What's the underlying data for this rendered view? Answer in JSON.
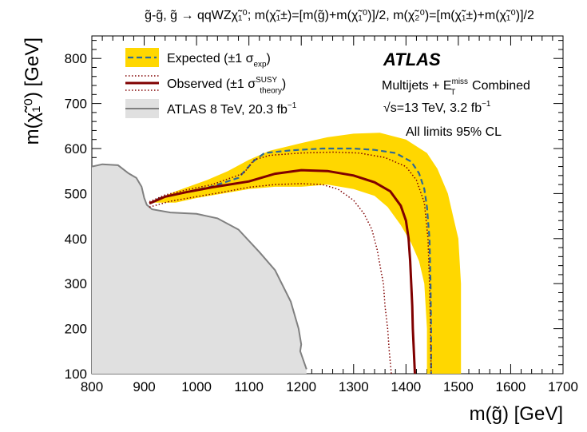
{
  "chart_data": {
    "type": "line",
    "title": "g̃-g̃, g̃ → qqWZχ̃₁⁰; m(χ̃₁±)=[m(g̃)+m(χ̃₁⁰)]/2, m(χ̃₂⁰)=[m(χ̃₁±)+m(χ̃₁⁰)]/2",
    "xlabel": "m(g̃) [GeV]",
    "ylabel": "m(χ̃₁⁰) [GeV]",
    "xlim": [
      800,
      1700
    ],
    "ylim": [
      100,
      850
    ],
    "x_ticks": [
      "800",
      "900",
      "1000",
      "1100",
      "1200",
      "1300",
      "1400",
      "1500",
      "1600",
      "1700"
    ],
    "y_ticks": [
      "100",
      "200",
      "300",
      "400",
      "500",
      "600",
      "700",
      "800"
    ],
    "legend": {
      "position": "top-left",
      "entries": [
        {
          "label": "Expected (±1 σ",
          "sub": "exp",
          "tail": ")",
          "style": "dashed-blue-with-yellow-band"
        },
        {
          "label": "Observed (±1 σ",
          "sup": "SUSY",
          "sub": "theory",
          "tail": ")",
          "style": "solid-darkred-with-dotted-lines"
        },
        {
          "label": "ATLAS 8 TeV, 20.3 fb",
          "sup": "−1",
          "tail": "",
          "style": "grey-filled"
        }
      ]
    },
    "annotations": {
      "experiment": "ATLAS",
      "analysis": "Multijets + E",
      "analysis_sup": "miss",
      "analysis_sub": "T",
      "analysis_tail": " Combined",
      "energy": "√s=13 TeV, 3.2 fb",
      "energy_sup": "−1",
      "cl": "All limits 95% CL"
    },
    "series": [
      {
        "name": "Expected ±1σ band",
        "kind": "band",
        "color": "#ffd700",
        "points": [
          [
            910,
            480
          ],
          [
            960,
            505
          ],
          [
            1020,
            530
          ],
          [
            1060,
            550
          ],
          [
            1100,
            575
          ],
          [
            1140,
            595
          ],
          [
            1200,
            612
          ],
          [
            1250,
            625
          ],
          [
            1300,
            633
          ],
          [
            1350,
            635
          ],
          [
            1400,
            620
          ],
          [
            1440,
            590
          ],
          [
            1460,
            555
          ],
          [
            1480,
            500
          ],
          [
            1490,
            450
          ],
          [
            1500,
            400
          ],
          [
            1505,
            300
          ],
          [
            1505,
            200
          ],
          [
            1505,
            100
          ],
          [
            1440,
            100
          ],
          [
            1440,
            200
          ],
          [
            1435,
            300
          ],
          [
            1425,
            350
          ],
          [
            1410,
            390
          ],
          [
            1390,
            430
          ],
          [
            1365,
            470
          ],
          [
            1340,
            495
          ],
          [
            1300,
            510
          ],
          [
            1250,
            520
          ],
          [
            1200,
            515
          ],
          [
            1150,
            515
          ],
          [
            1100,
            510
          ],
          [
            1050,
            500
          ],
          [
            1000,
            490
          ],
          [
            960,
            480
          ]
        ]
      },
      {
        "name": "Expected",
        "kind": "line",
        "color": "#2f6a94",
        "dash": "dashed",
        "points": [
          [
            910,
            478
          ],
          [
            930,
            490
          ],
          [
            980,
            503
          ],
          [
            1030,
            516
          ],
          [
            1080,
            535
          ],
          [
            1110,
            573
          ],
          [
            1130,
            590
          ],
          [
            1180,
            596
          ],
          [
            1240,
            600
          ],
          [
            1300,
            600
          ],
          [
            1340,
            597
          ],
          [
            1380,
            590
          ],
          [
            1410,
            571
          ],
          [
            1425,
            545
          ],
          [
            1435,
            510
          ],
          [
            1440,
            470
          ],
          [
            1445,
            400
          ],
          [
            1447,
            300
          ],
          [
            1448,
            200
          ],
          [
            1448,
            100
          ]
        ]
      },
      {
        "name": "Observed",
        "kind": "line",
        "color": "#800000",
        "dash": "solid",
        "points": [
          [
            910,
            478
          ],
          [
            940,
            493
          ],
          [
            980,
            503
          ],
          [
            1030,
            514
          ],
          [
            1100,
            527
          ],
          [
            1150,
            544
          ],
          [
            1200,
            552
          ],
          [
            1250,
            550
          ],
          [
            1300,
            540
          ],
          [
            1340,
            525
          ],
          [
            1370,
            505
          ],
          [
            1390,
            473
          ],
          [
            1400,
            440
          ],
          [
            1405,
            400
          ],
          [
            1408,
            350
          ],
          [
            1410,
            300
          ],
          [
            1412,
            250
          ],
          [
            1413,
            200
          ],
          [
            1415,
            150
          ],
          [
            1417,
            100
          ]
        ]
      },
      {
        "name": "Observed +1σ theory",
        "kind": "line",
        "color": "#800000",
        "dash": "dotted",
        "points": [
          [
            910,
            482
          ],
          [
            940,
            497
          ],
          [
            980,
            508
          ],
          [
            1030,
            520
          ],
          [
            1090,
            545
          ],
          [
            1110,
            575
          ],
          [
            1140,
            585
          ],
          [
            1200,
            590
          ],
          [
            1260,
            592
          ],
          [
            1310,
            590
          ],
          [
            1360,
            580
          ],
          [
            1400,
            560
          ],
          [
            1420,
            530
          ],
          [
            1435,
            480
          ],
          [
            1442,
            400
          ],
          [
            1445,
            300
          ],
          [
            1447,
            200
          ],
          [
            1448,
            100
          ]
        ]
      },
      {
        "name": "Observed −1σ theory",
        "kind": "line",
        "color": "#800000",
        "dash": "dotted",
        "points": [
          [
            910,
            470
          ],
          [
            950,
            483
          ],
          [
            1000,
            493
          ],
          [
            1050,
            503
          ],
          [
            1100,
            514
          ],
          [
            1150,
            520
          ],
          [
            1200,
            522
          ],
          [
            1240,
            520
          ],
          [
            1270,
            510
          ],
          [
            1300,
            485
          ],
          [
            1320,
            455
          ],
          [
            1335,
            420
          ],
          [
            1345,
            375
          ],
          [
            1352,
            330
          ],
          [
            1357,
            300
          ],
          [
            1360,
            250
          ],
          [
            1365,
            200
          ],
          [
            1368,
            150
          ],
          [
            1372,
            100
          ]
        ]
      },
      {
        "name": "ATLAS 8 TeV",
        "kind": "filled",
        "color": "#e0e0e0",
        "edge": "#808080",
        "points": [
          [
            800,
            560
          ],
          [
            820,
            565
          ],
          [
            850,
            563
          ],
          [
            870,
            545
          ],
          [
            885,
            535
          ],
          [
            895,
            515
          ],
          [
            900,
            490
          ],
          [
            905,
            475
          ],
          [
            915,
            465
          ],
          [
            950,
            458
          ],
          [
            1000,
            455
          ],
          [
            1040,
            445
          ],
          [
            1080,
            420
          ],
          [
            1120,
            370
          ],
          [
            1150,
            330
          ],
          [
            1180,
            260
          ],
          [
            1195,
            200
          ],
          [
            1200,
            165
          ],
          [
            1198,
            150
          ],
          [
            1210,
            110
          ],
          [
            1210,
            100
          ],
          [
            800,
            100
          ]
        ]
      }
    ]
  }
}
